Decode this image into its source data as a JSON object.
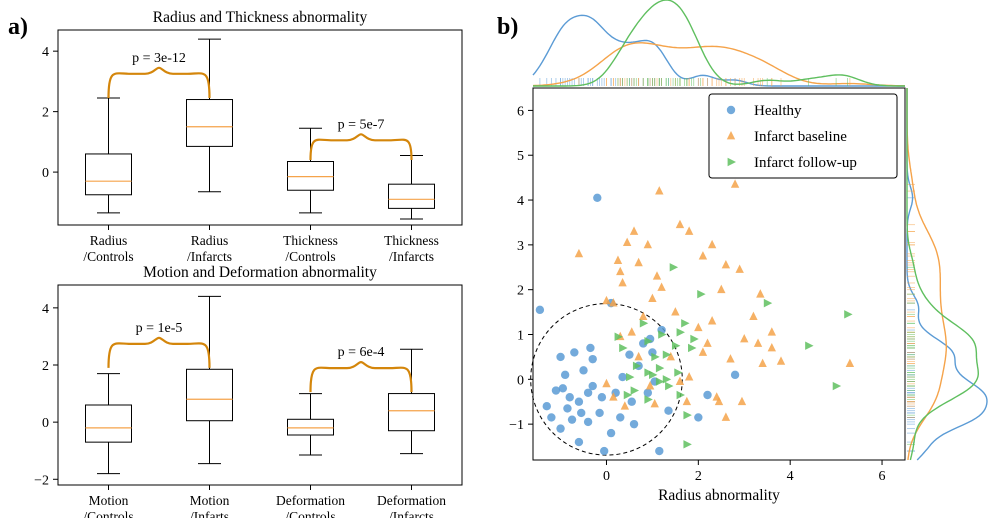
{
  "panel_labels": {
    "a": "a)",
    "b": "b)"
  },
  "colors": {
    "healthy": "#5b9bd5",
    "baseline": "#f5a34a",
    "followup": "#5fbf5f",
    "brace": "#d4860b",
    "median": "#f5a34a"
  },
  "chart_data": [
    {
      "type": "box",
      "title": "Radius and Thickness abnormality",
      "ylim": [
        -1.75,
        4.7
      ],
      "yticks": [
        0,
        2,
        4
      ],
      "categories": [
        "Radius\n/Controls",
        "Radius\n/Infarcts",
        "Thickness\n/Controls",
        "Thickness\n/Infarcts"
      ],
      "boxes": [
        {
          "whislo": -1.35,
          "q1": -0.75,
          "med": -0.3,
          "q3": 0.6,
          "whishi": 2.45
        },
        {
          "whislo": -0.65,
          "q1": 0.85,
          "med": 1.5,
          "q3": 2.4,
          "whishi": 4.4
        },
        {
          "whislo": -1.35,
          "q1": -0.6,
          "med": -0.15,
          "q3": 0.35,
          "whishi": 1.45
        },
        {
          "whislo": -1.55,
          "q1": -1.2,
          "med": -0.9,
          "q3": -0.4,
          "whishi": 0.55
        }
      ],
      "annotations": [
        {
          "text": "p = 3e-12",
          "from": 0,
          "to": 1,
          "base_y": 2.45,
          "peak_y": 3.45
        },
        {
          "text": "p = 5e-7",
          "from": 2,
          "to": 3,
          "base_y": 0.4,
          "peak_y": 1.25
        }
      ]
    },
    {
      "type": "box",
      "title": "Motion and Deformation abnormality",
      "ylim": [
        -2.2,
        4.8
      ],
      "yticks": [
        -2,
        0,
        2,
        4
      ],
      "categories": [
        "Motion\n/Controls",
        "Motion\n/Infarts",
        "Deformation\n/Controls",
        "Deformation\n/Infarcts"
      ],
      "boxes": [
        {
          "whislo": -1.8,
          "q1": -0.7,
          "med": -0.2,
          "q3": 0.6,
          "whishi": 1.7
        },
        {
          "whislo": -1.45,
          "q1": 0.05,
          "med": 0.8,
          "q3": 1.85,
          "whishi": 4.4
        },
        {
          "whislo": -1.15,
          "q1": -0.45,
          "med": -0.2,
          "q3": 0.1,
          "whishi": 1.0
        },
        {
          "whislo": -1.1,
          "q1": -0.3,
          "med": 0.4,
          "q3": 1.0,
          "whishi": 2.55
        }
      ],
      "annotations": [
        {
          "text": "p = 1e-5",
          "from": 0,
          "to": 1,
          "base_y": 1.9,
          "peak_y": 2.95
        },
        {
          "text": "p = 6e-4",
          "from": 2,
          "to": 3,
          "base_y": 1.05,
          "peak_y": 2.1
        }
      ]
    },
    {
      "type": "scatter",
      "title": "",
      "xlabel": "Radius abnormality",
      "ylabel": "",
      "xlim": [
        -1.6,
        6.5
      ],
      "ylim": [
        -1.8,
        6.5
      ],
      "xticks": [
        0,
        2,
        4,
        6
      ],
      "yticks": [
        -1,
        0,
        1,
        2,
        3,
        4,
        5,
        6
      ],
      "legend_position": "top-right",
      "circle": {
        "cx": 0.0,
        "cy": 0.0,
        "r": 1.65
      },
      "series": [
        {
          "name": "Healthy",
          "marker": "circle",
          "points": [
            [
              -1.45,
              1.55
            ],
            [
              -0.2,
              4.05
            ],
            [
              0.1,
              1.7
            ],
            [
              -1.0,
              0.5
            ],
            [
              -0.7,
              0.6
            ],
            [
              -0.9,
              0.1
            ],
            [
              -0.5,
              0.2
            ],
            [
              -1.3,
              -0.6
            ],
            [
              -1.2,
              -0.85
            ],
            [
              -1.0,
              -1.1
            ],
            [
              -0.75,
              -0.9
            ],
            [
              -0.6,
              -0.5
            ],
            [
              -0.4,
              -0.3
            ],
            [
              -0.3,
              -0.15
            ],
            [
              -0.1,
              -0.4
            ],
            [
              0.2,
              -0.3
            ],
            [
              0.5,
              0.55
            ],
            [
              0.8,
              0.8
            ],
            [
              1.0,
              0.6
            ],
            [
              -0.35,
              0.7
            ],
            [
              0.3,
              -0.85
            ],
            [
              0.55,
              -0.5
            ],
            [
              0.9,
              -0.3
            ],
            [
              1.35,
              -0.7
            ],
            [
              2.2,
              -0.35
            ],
            [
              -0.8,
              -0.4
            ],
            [
              -0.95,
              -0.2
            ],
            [
              -0.55,
              -0.75
            ],
            [
              -0.15,
              -0.75
            ],
            [
              0.95,
              0.9
            ],
            [
              1.05,
              -0.05
            ],
            [
              1.2,
              1.1
            ],
            [
              0.7,
              0.3
            ],
            [
              -0.6,
              -1.4
            ],
            [
              -0.3,
              0.45
            ],
            [
              2.0,
              -0.85
            ],
            [
              2.8,
              0.1
            ],
            [
              -0.05,
              -1.6
            ],
            [
              1.15,
              -1.6
            ],
            [
              0.1,
              -1.2
            ],
            [
              -0.4,
              -0.95
            ],
            [
              -1.1,
              -0.25
            ],
            [
              -0.85,
              -0.65
            ],
            [
              0.35,
              0.05
            ],
            [
              0.6,
              -1.0
            ]
          ]
        },
        {
          "name": "Infarct baseline",
          "marker": "triangle-up",
          "points": [
            [
              -0.6,
              2.8
            ],
            [
              0.0,
              1.75
            ],
            [
              0.15,
              1.7
            ],
            [
              0.25,
              2.65
            ],
            [
              0.3,
              2.4
            ],
            [
              0.35,
              2.15
            ],
            [
              0.45,
              3.05
            ],
            [
              0.6,
              3.3
            ],
            [
              0.7,
              2.6
            ],
            [
              0.9,
              3.0
            ],
            [
              1.0,
              1.8
            ],
            [
              1.1,
              2.3
            ],
            [
              1.15,
              4.2
            ],
            [
              1.6,
              3.45
            ],
            [
              1.8,
              3.3
            ],
            [
              2.1,
              2.75
            ],
            [
              2.3,
              3.0
            ],
            [
              2.5,
              2.0
            ],
            [
              2.6,
              2.55
            ],
            [
              2.8,
              4.35
            ],
            [
              2.9,
              2.45
            ],
            [
              3.2,
              1.4
            ],
            [
              3.35,
              1.9
            ],
            [
              2.3,
              1.3
            ],
            [
              2.0,
              1.15
            ],
            [
              2.2,
              0.8
            ],
            [
              2.7,
              0.45
            ],
            [
              3.0,
              0.9
            ],
            [
              3.3,
              0.8
            ],
            [
              3.6,
              0.7
            ],
            [
              3.6,
              1.05
            ],
            [
              3.8,
              0.4
            ],
            [
              2.1,
              0.6
            ],
            [
              1.8,
              0.05
            ],
            [
              1.6,
              -0.05
            ],
            [
              1.4,
              0.5
            ],
            [
              1.5,
              1.5
            ],
            [
              1.2,
              2.05
            ],
            [
              0.8,
              1.4
            ],
            [
              0.55,
              1.05
            ],
            [
              0.3,
              0.95
            ],
            [
              0.7,
              0.5
            ],
            [
              0.0,
              -0.1
            ],
            [
              0.15,
              -0.4
            ],
            [
              0.95,
              -0.15
            ],
            [
              1.75,
              -0.5
            ],
            [
              2.4,
              -0.4
            ],
            [
              2.45,
              -0.5
            ],
            [
              2.95,
              -0.5
            ],
            [
              3.4,
              0.35
            ],
            [
              5.3,
              0.35
            ],
            [
              0.4,
              -0.6
            ],
            [
              1.05,
              -0.55
            ],
            [
              2.6,
              -0.85
            ]
          ]
        },
        {
          "name": "Infarct follow-up",
          "marker": "triangle-right",
          "points": [
            [
              0.8,
              1.25
            ],
            [
              0.9,
              0.85
            ],
            [
              1.05,
              0.5
            ],
            [
              1.15,
              0.25
            ],
            [
              1.3,
              0.0
            ],
            [
              1.35,
              -0.15
            ],
            [
              1.5,
              0.75
            ],
            [
              1.6,
              1.05
            ],
            [
              1.7,
              1.25
            ],
            [
              1.85,
              0.7
            ],
            [
              1.45,
              2.5
            ],
            [
              1.55,
              0.15
            ],
            [
              1.6,
              -0.35
            ],
            [
              1.75,
              -0.8
            ],
            [
              1.75,
              -1.45
            ],
            [
              2.05,
              1.9
            ],
            [
              0.35,
              0.7
            ],
            [
              0.5,
              0.05
            ],
            [
              0.6,
              -0.25
            ],
            [
              1.0,
              0.1
            ],
            [
              1.15,
              -0.05
            ],
            [
              0.9,
              -0.45
            ],
            [
              1.3,
              0.55
            ],
            [
              3.5,
              1.7
            ],
            [
              4.4,
              0.75
            ],
            [
              5.25,
              1.45
            ],
            [
              5.0,
              -0.15
            ],
            [
              0.25,
              0.95
            ],
            [
              0.45,
              -0.35
            ],
            [
              0.65,
              0.3
            ],
            [
              1.9,
              0.9
            ],
            [
              0.9,
              0.15
            ],
            [
              1.2,
              1.0
            ]
          ]
        }
      ]
    }
  ]
}
